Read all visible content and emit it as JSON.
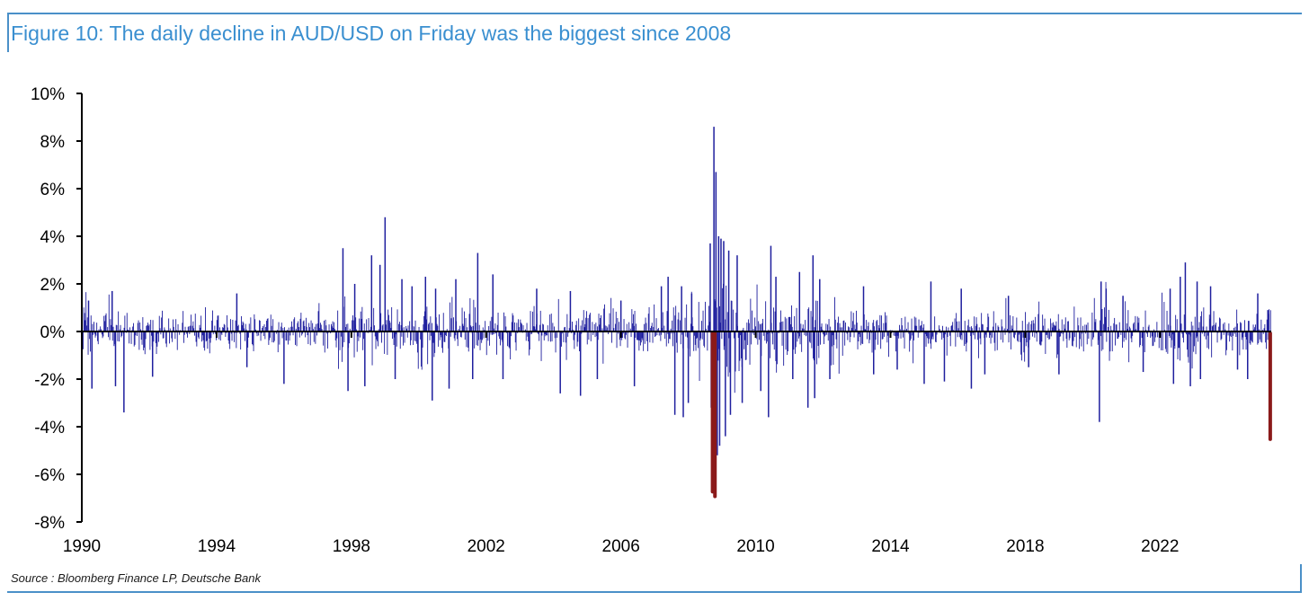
{
  "title": "Figure 10: The daily decline in AUD/USD on Friday was the biggest since 2008",
  "source": "Source : Bloomberg Finance LP, Deutsche Bank",
  "chart_data": {
    "type": "bar",
    "title": "Figure 10: The daily decline in AUD/USD on Friday was the biggest since 2008",
    "xlabel": "",
    "ylabel": "",
    "x_ticks": [
      "1990",
      "1994",
      "1998",
      "2002",
      "2006",
      "2010",
      "2014",
      "2018",
      "2022"
    ],
    "y_ticks": [
      "10%",
      "8%",
      "6%",
      "4%",
      "2%",
      "0%",
      "-2%",
      "-4%",
      "-6%",
      "-8%"
    ],
    "xlim": [
      1990,
      2025.3
    ],
    "ylim": [
      -8,
      10
    ],
    "grid": false,
    "legend": "none",
    "series_colors": {
      "daily_change": "#1f1f9e",
      "highlight": "#8b1a1a"
    },
    "volatility_regimes": [
      {
        "start": 1990.0,
        "end": 1991.2,
        "typical_abs_pct": 0.6
      },
      {
        "start": 1991.2,
        "end": 1997.6,
        "typical_abs_pct": 0.45
      },
      {
        "start": 1997.6,
        "end": 2001.8,
        "typical_abs_pct": 0.7
      },
      {
        "start": 2001.8,
        "end": 2007.5,
        "typical_abs_pct": 0.55
      },
      {
        "start": 2007.5,
        "end": 2008.6,
        "typical_abs_pct": 0.85
      },
      {
        "start": 2008.6,
        "end": 2009.4,
        "typical_abs_pct": 1.5
      },
      {
        "start": 2009.4,
        "end": 2012.5,
        "typical_abs_pct": 0.8
      },
      {
        "start": 2012.5,
        "end": 2020.0,
        "typical_abs_pct": 0.5
      },
      {
        "start": 2020.0,
        "end": 2020.5,
        "typical_abs_pct": 0.8
      },
      {
        "start": 2020.5,
        "end": 2022.0,
        "typical_abs_pct": 0.5
      },
      {
        "start": 2022.0,
        "end": 2023.3,
        "typical_abs_pct": 0.75
      },
      {
        "start": 2023.3,
        "end": 2025.3,
        "typical_abs_pct": 0.55
      }
    ],
    "notable_moves": [
      {
        "x": 1990.2,
        "value": 1.3
      },
      {
        "x": 1990.3,
        "value": -2.4
      },
      {
        "x": 1990.9,
        "value": 1.7
      },
      {
        "x": 1991.0,
        "value": -2.3
      },
      {
        "x": 1991.25,
        "value": -3.4
      },
      {
        "x": 1992.1,
        "value": -1.9
      },
      {
        "x": 1994.6,
        "value": 1.6
      },
      {
        "x": 1994.9,
        "value": -1.5
      },
      {
        "x": 1996.0,
        "value": -2.2
      },
      {
        "x": 1997.75,
        "value": 3.5
      },
      {
        "x": 1997.9,
        "value": -2.5
      },
      {
        "x": 1998.1,
        "value": 2.0
      },
      {
        "x": 1998.6,
        "value": 3.2
      },
      {
        "x": 1998.85,
        "value": 2.8
      },
      {
        "x": 1998.4,
        "value": -2.3
      },
      {
        "x": 1999.0,
        "value": 4.8
      },
      {
        "x": 1999.3,
        "value": -2.0
      },
      {
        "x": 1999.5,
        "value": 2.2
      },
      {
        "x": 1999.8,
        "value": 1.9
      },
      {
        "x": 2000.2,
        "value": 2.3
      },
      {
        "x": 2000.5,
        "value": 1.8
      },
      {
        "x": 2000.4,
        "value": -2.9
      },
      {
        "x": 2000.9,
        "value": -2.4
      },
      {
        "x": 2001.1,
        "value": 2.2
      },
      {
        "x": 2001.6,
        "value": -2.0
      },
      {
        "x": 2001.75,
        "value": 3.3
      },
      {
        "x": 2002.2,
        "value": 2.4
      },
      {
        "x": 2002.5,
        "value": -2.0
      },
      {
        "x": 2003.5,
        "value": 1.8
      },
      {
        "x": 2004.2,
        "value": -2.6
      },
      {
        "x": 2004.5,
        "value": 1.7
      },
      {
        "x": 2004.8,
        "value": -2.7
      },
      {
        "x": 2005.3,
        "value": -2.0
      },
      {
        "x": 2006.0,
        "value": 1.3
      },
      {
        "x": 2006.4,
        "value": -2.3
      },
      {
        "x": 2007.2,
        "value": 1.9
      },
      {
        "x": 2007.4,
        "value": 2.3
      },
      {
        "x": 2007.6,
        "value": -3.5
      },
      {
        "x": 2007.8,
        "value": 1.9
      },
      {
        "x": 2007.85,
        "value": -3.6
      },
      {
        "x": 2008.0,
        "value": -3.0
      },
      {
        "x": 2008.1,
        "value": 1.6
      },
      {
        "x": 2008.65,
        "value": 3.7
      },
      {
        "x": 2008.68,
        "value": -3.2
      },
      {
        "x": 2008.72,
        "value": -6.8
      },
      {
        "x": 2008.76,
        "value": 8.6
      },
      {
        "x": 2008.79,
        "value": -7.0
      },
      {
        "x": 2008.82,
        "value": 6.7
      },
      {
        "x": 2008.86,
        "value": -5.2
      },
      {
        "x": 2008.9,
        "value": 4.0
      },
      {
        "x": 2008.93,
        "value": -4.8
      },
      {
        "x": 2008.97,
        "value": 3.9
      },
      {
        "x": 2009.05,
        "value": 3.8
      },
      {
        "x": 2009.1,
        "value": -4.4
      },
      {
        "x": 2009.2,
        "value": 3.4
      },
      {
        "x": 2009.25,
        "value": -3.5
      },
      {
        "x": 2009.45,
        "value": 3.2
      },
      {
        "x": 2009.6,
        "value": -3.0
      },
      {
        "x": 2010.15,
        "value": -2.5
      },
      {
        "x": 2010.38,
        "value": -3.6
      },
      {
        "x": 2010.45,
        "value": 3.6
      },
      {
        "x": 2010.6,
        "value": 2.3
      },
      {
        "x": 2011.1,
        "value": -2.0
      },
      {
        "x": 2011.3,
        "value": 2.5
      },
      {
        "x": 2011.55,
        "value": -3.2
      },
      {
        "x": 2011.7,
        "value": 3.2
      },
      {
        "x": 2011.75,
        "value": -2.8
      },
      {
        "x": 2011.9,
        "value": 2.2
      },
      {
        "x": 2012.2,
        "value": -2.0
      },
      {
        "x": 2013.2,
        "value": 1.9
      },
      {
        "x": 2013.5,
        "value": -1.8
      },
      {
        "x": 2014.2,
        "value": -1.6
      },
      {
        "x": 2015.0,
        "value": -2.2
      },
      {
        "x": 2015.2,
        "value": 2.1
      },
      {
        "x": 2015.6,
        "value": -2.1
      },
      {
        "x": 2016.1,
        "value": 1.8
      },
      {
        "x": 2016.4,
        "value": -2.4
      },
      {
        "x": 2016.8,
        "value": -1.8
      },
      {
        "x": 2017.5,
        "value": 1.5
      },
      {
        "x": 2018.1,
        "value": -1.5
      },
      {
        "x": 2019.0,
        "value": -1.8
      },
      {
        "x": 2020.2,
        "value": -3.8
      },
      {
        "x": 2020.25,
        "value": 2.1
      },
      {
        "x": 2020.4,
        "value": 1.8
      },
      {
        "x": 2020.9,
        "value": 1.5
      },
      {
        "x": 2021.5,
        "value": -1.7
      },
      {
        "x": 2022.3,
        "value": 1.8
      },
      {
        "x": 2022.4,
        "value": -2.2
      },
      {
        "x": 2022.6,
        "value": 2.3
      },
      {
        "x": 2022.75,
        "value": 2.9
      },
      {
        "x": 2022.9,
        "value": -2.3
      },
      {
        "x": 2023.1,
        "value": 2.1
      },
      {
        "x": 2023.2,
        "value": -2.0
      },
      {
        "x": 2023.5,
        "value": 1.9
      },
      {
        "x": 2024.3,
        "value": -1.6
      },
      {
        "x": 2024.6,
        "value": -2.0
      },
      {
        "x": 2024.9,
        "value": 1.6
      },
      {
        "x": 2025.2,
        "value": 0.9
      }
    ],
    "highlights": [
      {
        "x": 2008.72,
        "value": -6.8
      },
      {
        "x": 2008.79,
        "value": -7.0
      },
      {
        "x": 2025.27,
        "value": -4.6
      }
    ]
  }
}
